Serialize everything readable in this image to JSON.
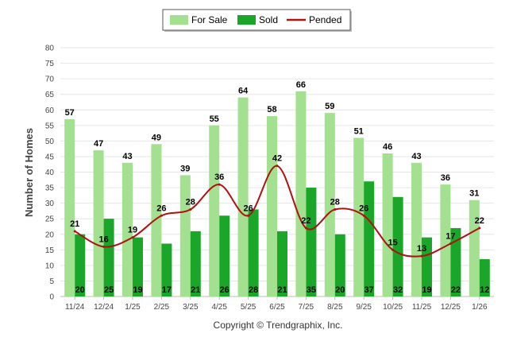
{
  "chart_data": {
    "type": "bar",
    "title": "",
    "xlabel": "",
    "ylabel": "Number of Homes",
    "ylim": [
      0,
      80
    ],
    "yticks": [
      0,
      5,
      10,
      15,
      20,
      25,
      30,
      35,
      40,
      45,
      50,
      55,
      60,
      65,
      70,
      75,
      80
    ],
    "categories": [
      "11/24",
      "12/24",
      "1/25",
      "2/25",
      "3/25",
      "4/25",
      "5/25",
      "6/25",
      "7/25",
      "8/25",
      "9/25",
      "10/25",
      "11/25",
      "12/25",
      "1/26"
    ],
    "series": [
      {
        "name": "For Sale",
        "kind": "bar",
        "color": "#a3e08f",
        "values": [
          57,
          47,
          43,
          49,
          39,
          55,
          64,
          58,
          66,
          59,
          51,
          46,
          43,
          36,
          31
        ]
      },
      {
        "name": "Sold",
        "kind": "bar",
        "color": "#1aa628",
        "values": [
          20,
          25,
          19,
          17,
          21,
          26,
          28,
          21,
          35,
          20,
          37,
          32,
          19,
          22,
          12
        ]
      },
      {
        "name": "Pended",
        "kind": "line",
        "color": "#b01010",
        "values": [
          21,
          16,
          19,
          26,
          28,
          36,
          26,
          42,
          22,
          28,
          26,
          15,
          13,
          17,
          22
        ]
      }
    ],
    "legend": {
      "position": "top-center",
      "entries": [
        "For Sale",
        "Sold",
        "Pended"
      ]
    },
    "grid": true
  },
  "footer": {
    "copyright": "Copyright © Trendgraphix, Inc."
  }
}
